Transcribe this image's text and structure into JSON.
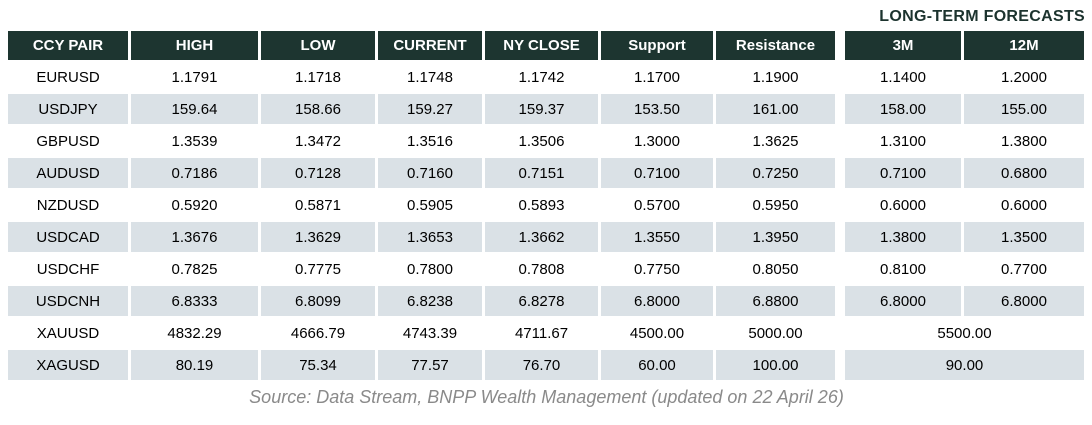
{
  "title": "LONG-TERM FORECASTS",
  "columns": [
    "CCY PAIR",
    "HIGH",
    "LOW",
    "CURRENT",
    "NY CLOSE",
    "Support",
    "Resistance",
    "3M",
    "12M"
  ],
  "rows": [
    {
      "pair": "EURUSD",
      "cells": [
        "1.1791",
        "1.1718",
        "1.1748",
        "1.1742",
        "1.1700",
        "1.1900",
        "1.1400",
        "1.2000"
      ]
    },
    {
      "pair": "USDJPY",
      "cells": [
        "159.64",
        "158.66",
        "159.27",
        "159.37",
        "153.50",
        "161.00",
        "158.00",
        "155.00"
      ]
    },
    {
      "pair": "GBPUSD",
      "cells": [
        "1.3539",
        "1.3472",
        "1.3516",
        "1.3506",
        "1.3000",
        "1.3625",
        "1.3100",
        "1.3800"
      ]
    },
    {
      "pair": "AUDUSD",
      "cells": [
        "0.7186",
        "0.7128",
        "0.7160",
        "0.7151",
        "0.7100",
        "0.7250",
        "0.7100",
        "0.6800"
      ]
    },
    {
      "pair": "NZDUSD",
      "cells": [
        "0.5920",
        "0.5871",
        "0.5905",
        "0.5893",
        "0.5700",
        "0.5950",
        "0.6000",
        "0.6000"
      ]
    },
    {
      "pair": "USDCAD",
      "cells": [
        "1.3676",
        "1.3629",
        "1.3653",
        "1.3662",
        "1.3550",
        "1.3950",
        "1.3800",
        "1.3500"
      ]
    },
    {
      "pair": "USDCHF",
      "cells": [
        "0.7825",
        "0.7775",
        "0.7800",
        "0.7808",
        "0.7750",
        "0.8050",
        "0.8100",
        "0.7700"
      ]
    },
    {
      "pair": "USDCNH",
      "cells": [
        "6.8333",
        "6.8099",
        "6.8238",
        "6.8278",
        "6.8000",
        "6.8800",
        "6.8000",
        "6.8000"
      ]
    },
    {
      "pair": "XAUUSD",
      "cells": [
        "4832.29",
        "4666.79",
        "4743.39",
        "4711.67",
        "4500.00",
        "5000.00"
      ],
      "long_term": "5500.00"
    },
    {
      "pair": "XAGUSD",
      "cells": [
        "80.19",
        "75.34",
        "77.57",
        "76.70",
        "60.00",
        "100.00"
      ],
      "long_term": "90.00"
    }
  ],
  "footer": "Source: Data Stream, BNPP Wealth Management (updated on 22 April 26)",
  "colors": {
    "header_bg": "#1d3530",
    "header_text": "#ffffff",
    "row_alt_bg": "#dae1e6",
    "title_color": "#1c332e",
    "footer_color": "#8a8a8a"
  }
}
